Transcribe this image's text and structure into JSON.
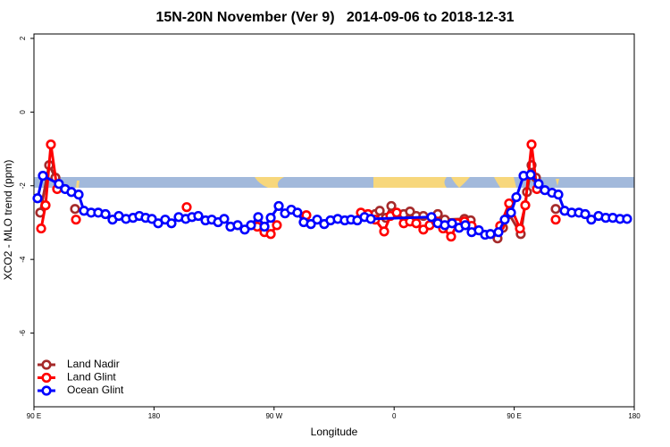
{
  "chart_data": {
    "type": "line",
    "title": "15N-20N November (Ver 9)   2014-09-06 to 2018-12-31",
    "xlabel": "Longitude",
    "ylabel": "XCO2 - MLO trend (ppm)",
    "xlim": [
      90,
      540
    ],
    "ylim": [
      -8,
      2.12
    ],
    "xticks": [
      {
        "value": 90,
        "label": "90 E"
      },
      {
        "value": 180,
        "label": "180"
      },
      {
        "value": 270,
        "label": "90 W"
      },
      {
        "value": 360,
        "label": "0"
      },
      {
        "value": 450,
        "label": "90 E"
      },
      {
        "value": 540,
        "label": "180"
      }
    ],
    "yticks": [
      2,
      0,
      -2,
      -4,
      -6
    ],
    "grid": false,
    "legend": "bottom-left",
    "series": [
      {
        "name": "Land Nadir",
        "color": "#a52a2a",
        "x": [
          94.7,
          101.4,
          106.1,
          null,
          120.8,
          null,
          345.8,
          349.2,
          353.8,
          357.9,
          362.5,
          367.2,
          371.9,
          376.6,
          381.9,
          392.7,
          398.0,
          412.7,
          417.4,
          null,
          437.5,
          441.6,
          446.2,
          454.9,
          459.6,
          463.0,
          466.3,
          null,
          481.1
        ],
        "values": [
          -2.73,
          -1.44,
          -1.78,
          null,
          -2.63,
          null,
          -2.77,
          -2.68,
          -2.87,
          -2.55,
          -2.77,
          -2.77,
          -2.7,
          -2.82,
          -2.82,
          -2.77,
          -2.92,
          -2.9,
          -2.94,
          null,
          -3.43,
          -3.14,
          -2.77,
          -3.31,
          -2.17,
          -1.44,
          -1.78,
          null,
          -2.63
        ]
      },
      {
        "name": "Land Glint",
        "color": "#ff0000",
        "x": [
          95.4,
          98.7,
          102.7,
          107.4,
          null,
          121.5,
          null,
          204.5,
          null,
          257.4,
          262.8,
          267.5,
          272.1,
          null,
          294.2,
          null,
          335.1,
          340.4,
          345.8,
          352.5,
          357.2,
          361.9,
          367.2,
          371.9,
          376.6,
          381.9,
          386.6,
          391.3,
          396.7,
          402.7,
          407.4,
          412.7,
          418.1,
          null,
          439.5,
          446.2,
          454.3,
          458.3,
          463.0,
          467.0,
          null,
          481.1
        ],
        "values": [
          -3.16,
          -2.53,
          -0.88,
          -2.09,
          null,
          -2.92,
          null,
          -2.58,
          null,
          -3.11,
          -3.26,
          -3.31,
          -3.07,
          null,
          -2.8,
          null,
          -2.73,
          -2.77,
          -2.92,
          -3.24,
          -2.82,
          -2.73,
          -3.02,
          -2.97,
          -3.02,
          -3.19,
          -3.07,
          -2.97,
          -3.16,
          -3.38,
          -3.02,
          -2.97,
          -3.09,
          null,
          -3.09,
          -2.48,
          -3.16,
          -2.53,
          -0.88,
          -2.09,
          null,
          -2.92
        ]
      },
      {
        "name": "Ocean Glint",
        "color": "#0000ff",
        "x": [
          92.7,
          96.7,
          108.7,
          113.4,
          118.1,
          123.5,
          127.5,
          132.9,
          138.2,
          143.6,
          148.9,
          153.6,
          159.0,
          164.3,
          169.0,
          173.7,
          178.4,
          183.1,
          188.4,
          193.1,
          198.5,
          203.8,
          208.5,
          213.2,
          218.6,
          223.3,
          228.0,
          232.6,
          237.3,
          242.7,
          248.0,
          252.7,
          258.1,
          262.8,
          267.5,
          273.5,
          278.2,
          282.9,
          287.5,
          292.2,
          297.6,
          302.3,
          307.6,
          312.3,
          317.7,
          323.0,
          327.7,
          332.4,
          337.8,
          342.5,
          388.0,
          392.7,
          398.0,
          403.4,
          408.7,
          413.4,
          418.1,
          423.5,
          428.2,
          432.2,
          438.2,
          442.9,
          447.6,
          451.6,
          457.0,
          462.3,
          468.3,
          473.0,
          478.4,
          483.1,
          487.8,
          493.1,
          498.5,
          503.2,
          507.8,
          513.2,
          518.6,
          523.9,
          529.3,
          534.6
        ],
        "values": [
          -2.34,
          -1.73,
          -1.95,
          -2.09,
          -2.17,
          -2.24,
          -2.68,
          -2.73,
          -2.73,
          -2.77,
          -2.92,
          -2.82,
          -2.9,
          -2.87,
          -2.82,
          -2.87,
          -2.9,
          -3.02,
          -2.92,
          -3.02,
          -2.85,
          -2.9,
          -2.85,
          -2.82,
          -2.94,
          -2.92,
          -2.99,
          -2.9,
          -3.11,
          -3.07,
          -3.19,
          -3.07,
          -2.85,
          -3.11,
          -2.87,
          -2.55,
          -2.75,
          -2.65,
          -2.73,
          -2.99,
          -3.04,
          -2.92,
          -3.04,
          -2.94,
          -2.9,
          -2.94,
          -2.92,
          -2.94,
          -2.85,
          -2.9,
          -2.85,
          -3.02,
          -3.07,
          -3.02,
          -3.14,
          -3.07,
          -3.26,
          -3.21,
          -3.33,
          -3.31,
          -3.26,
          -2.92,
          -2.73,
          -2.31,
          -1.73,
          -1.7,
          -1.95,
          -2.12,
          -2.19,
          -2.24,
          -2.68,
          -2.73,
          -2.73,
          -2.77,
          -2.92,
          -2.82,
          -2.87,
          -2.87,
          -2.9,
          -2.9
        ]
      }
    ]
  }
}
